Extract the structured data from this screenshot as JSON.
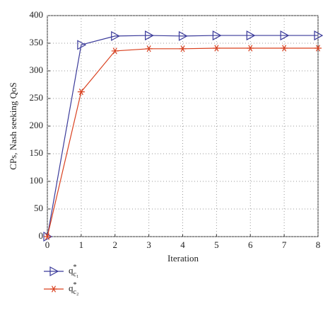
{
  "chart_data": {
    "type": "line",
    "x_label": "Iteration",
    "y_label": "CPs, Nash seeking QoS",
    "x": [
      0,
      1,
      2,
      3,
      4,
      5,
      6,
      7,
      8
    ],
    "xlim": [
      0,
      8
    ],
    "xticks": [
      0,
      1,
      2,
      3,
      4,
      5,
      6,
      7,
      8
    ],
    "ylim": [
      0,
      400
    ],
    "yticks": [
      0,
      50,
      100,
      150,
      200,
      250,
      300,
      350,
      400
    ],
    "grid": true,
    "series": [
      {
        "name": "q*c₁",
        "color": "#3a3a9a",
        "marker": "triangle-right",
        "values": [
          0,
          347,
          363,
          364,
          363,
          364,
          364,
          364,
          364
        ]
      },
      {
        "name": "q*c₂",
        "color": "#d9401f",
        "marker": "asterisk",
        "values": [
          0,
          262,
          336,
          340,
          340,
          341,
          341,
          341,
          341
        ]
      }
    ]
  }
}
